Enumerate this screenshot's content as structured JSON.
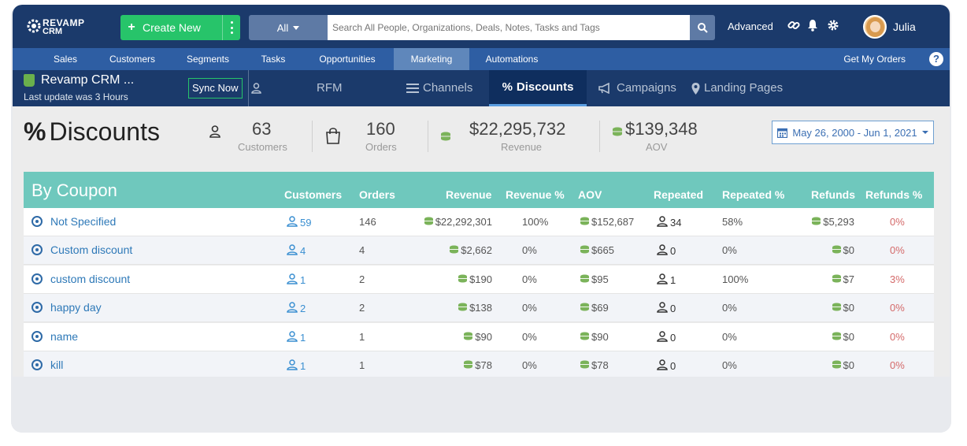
{
  "topbar": {
    "logo_line1": "REVAMP",
    "logo_line2": "CRM",
    "create_label": "Create New",
    "filter_label": "All",
    "search_placeholder": "Search All People, Organizations, Deals, Notes, Tasks and Tags",
    "advanced_label": "Advanced",
    "user_name": "Julia"
  },
  "mainnav": {
    "items": [
      "Sales",
      "Customers",
      "Segments",
      "Tasks",
      "Opportunities",
      "Marketing",
      "Automations"
    ],
    "active": "Marketing",
    "get_orders": "Get My Orders",
    "help": "?"
  },
  "subnav": {
    "store_name": "Revamp CRM ...",
    "last_update": "Last update was 3 Hours",
    "sync_label": "Sync Now",
    "tabs": [
      "RFM",
      "Channels",
      "Discounts",
      "Campaigns",
      "Landing Pages"
    ],
    "active_tab": "Discounts"
  },
  "stats": {
    "page_title": "Discounts",
    "customers_value": "63",
    "customers_label": "Customers",
    "orders_value": "160",
    "orders_label": "Orders",
    "revenue_value": "$22,295,732",
    "revenue_label": "Revenue",
    "aov_value": "$139,348",
    "aov_label": "AOV",
    "date_range": "May 26, 2000 - Jun 1, 2021"
  },
  "table": {
    "title": "By Coupon",
    "headers": [
      "Customers",
      "Orders",
      "Revenue",
      "Revenue %",
      "AOV",
      "Repeated",
      "Repeated %",
      "Refunds",
      "Refunds %"
    ],
    "rows": [
      {
        "name": "Not Specified",
        "customers": "59",
        "orders": "146",
        "revenue": "$22,292,301",
        "revenue_pct": "100%",
        "aov": "$152,687",
        "repeated": "34",
        "repeated_pct": "58%",
        "refunds": "$5,293",
        "refunds_pct": "0%"
      },
      {
        "name": "Custom discount",
        "customers": "4",
        "orders": "4",
        "revenue": "$2,662",
        "revenue_pct": "0%",
        "aov": "$665",
        "repeated": "0",
        "repeated_pct": "0%",
        "refunds": "$0",
        "refunds_pct": "0%"
      },
      {
        "name": "custom discount",
        "customers": "1",
        "orders": "2",
        "revenue": "$190",
        "revenue_pct": "0%",
        "aov": "$95",
        "repeated": "1",
        "repeated_pct": "100%",
        "refunds": "$7",
        "refunds_pct": "3%"
      },
      {
        "name": "happy day",
        "customers": "2",
        "orders": "2",
        "revenue": "$138",
        "revenue_pct": "0%",
        "aov": "$69",
        "repeated": "0",
        "repeated_pct": "0%",
        "refunds": "$0",
        "refunds_pct": "0%"
      },
      {
        "name": "name",
        "customers": "1",
        "orders": "1",
        "revenue": "$90",
        "revenue_pct": "0%",
        "aov": "$90",
        "repeated": "0",
        "repeated_pct": "0%",
        "refunds": "$0",
        "refunds_pct": "0%"
      },
      {
        "name": "kill",
        "customers": "1",
        "orders": "1",
        "revenue": "$78",
        "revenue_pct": "0%",
        "aov": "$78",
        "repeated": "0",
        "repeated_pct": "0%",
        "refunds": "$0",
        "refunds_pct": "0%"
      }
    ]
  },
  "colors": {
    "topbar": "#1b3a6b",
    "mainnav": "#2e5ea3",
    "create_button": "#27c46a",
    "table_header": "#6fc8bd",
    "link": "#2e79b8",
    "refund_pct": "#d46a6a"
  }
}
